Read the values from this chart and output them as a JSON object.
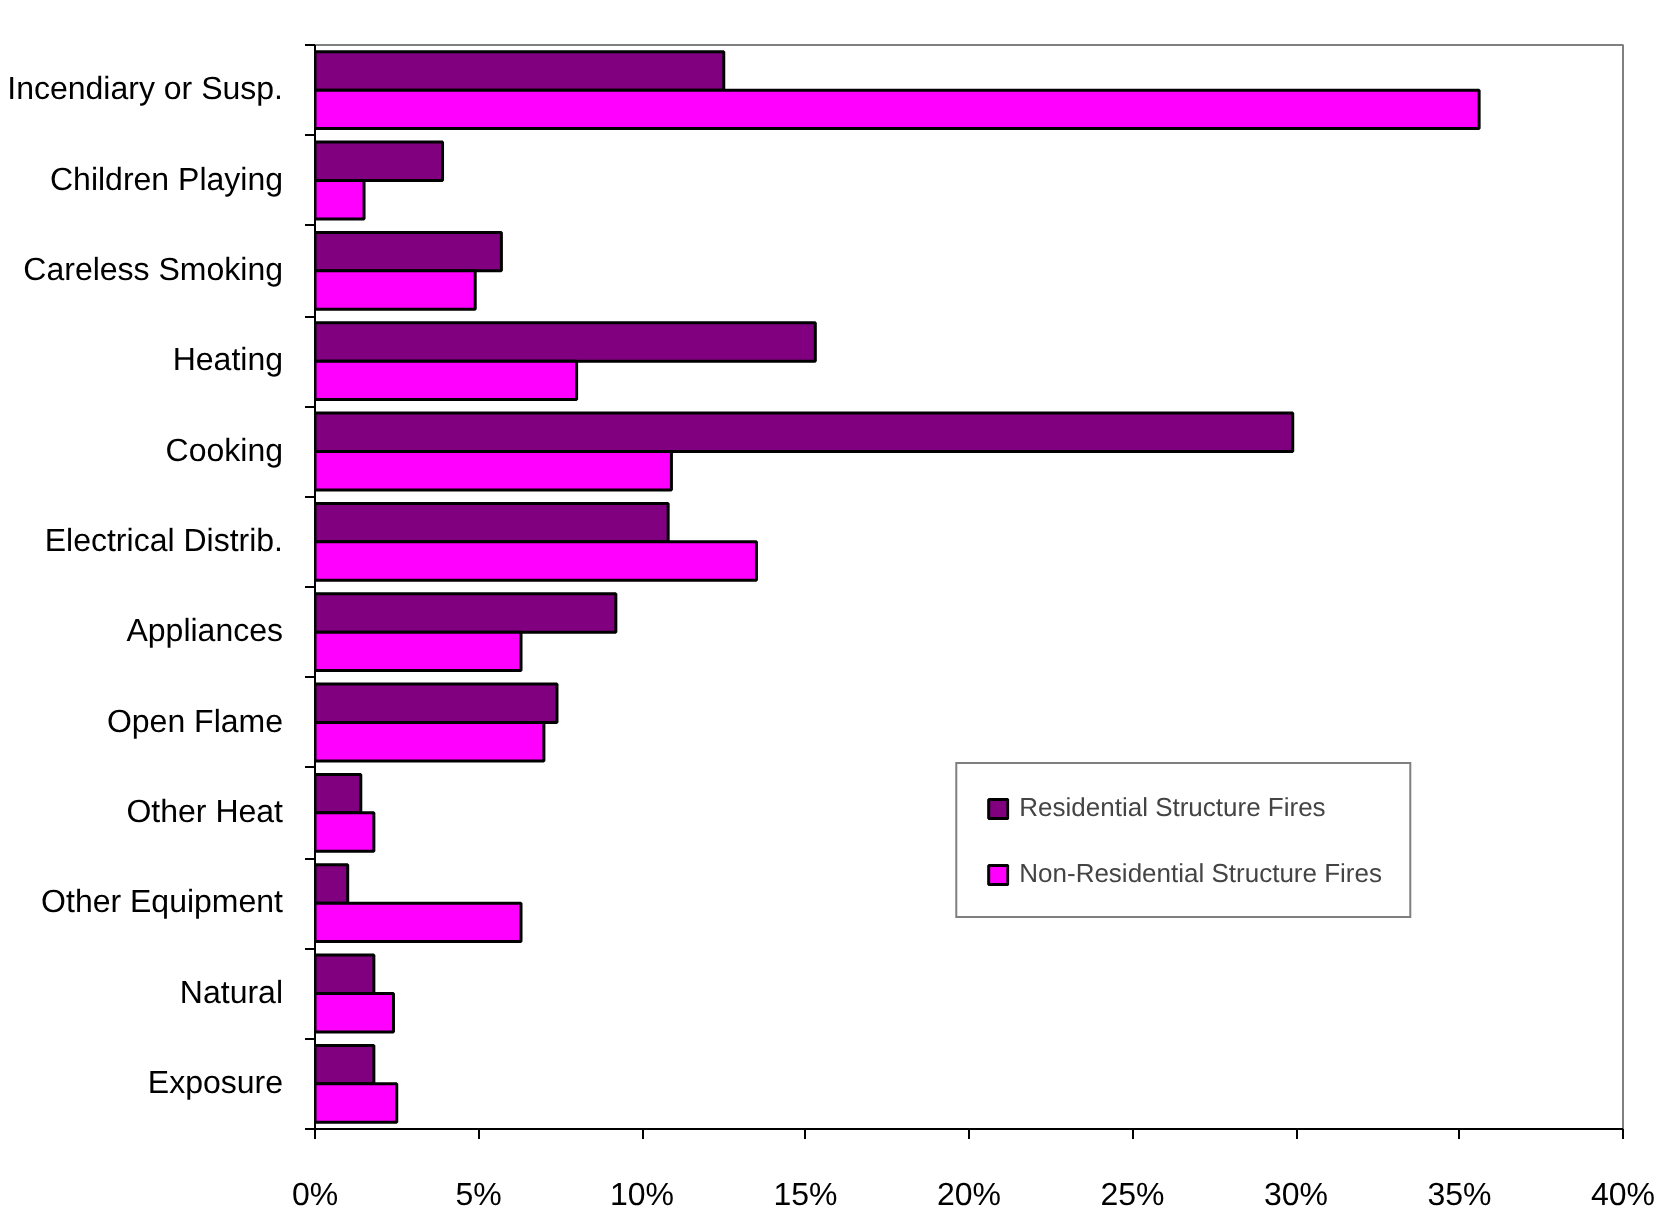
{
  "chart_data": {
    "type": "bar",
    "orientation": "horizontal",
    "categories": [
      "Incendiary or Susp.",
      "Children Playing",
      "Careless Smoking",
      "Heating",
      "Cooking",
      "Electrical Distrib.",
      "Appliances",
      "Open Flame",
      "Other Heat",
      "Other Equipment",
      "Natural",
      "Exposure"
    ],
    "series": [
      {
        "name": "Residential Structure Fires",
        "color": "#800080",
        "values": [
          12.5,
          3.9,
          5.7,
          15.3,
          29.9,
          10.8,
          9.2,
          7.4,
          1.4,
          1.0,
          1.8,
          1.8
        ]
      },
      {
        "name": "Non-Residential Structure Fires",
        "color": "#ff00ff",
        "values": [
          35.6,
          1.5,
          4.9,
          8.0,
          10.9,
          13.5,
          6.3,
          7.0,
          1.8,
          6.3,
          2.4,
          2.5
        ]
      }
    ],
    "xlim": [
      0,
      40
    ],
    "xticks": [
      {
        "value": 0,
        "label": "0%"
      },
      {
        "value": 5,
        "label": "5%"
      },
      {
        "value": 10,
        "label": "10%"
      },
      {
        "value": 15,
        "label": "15%"
      },
      {
        "value": 20,
        "label": "20%"
      },
      {
        "value": 25,
        "label": "25%"
      },
      {
        "value": 30,
        "label": "30%"
      },
      {
        "value": 35,
        "label": "35%"
      },
      {
        "value": 40,
        "label": "40%"
      }
    ],
    "grid": false,
    "legend": "bottom right"
  }
}
